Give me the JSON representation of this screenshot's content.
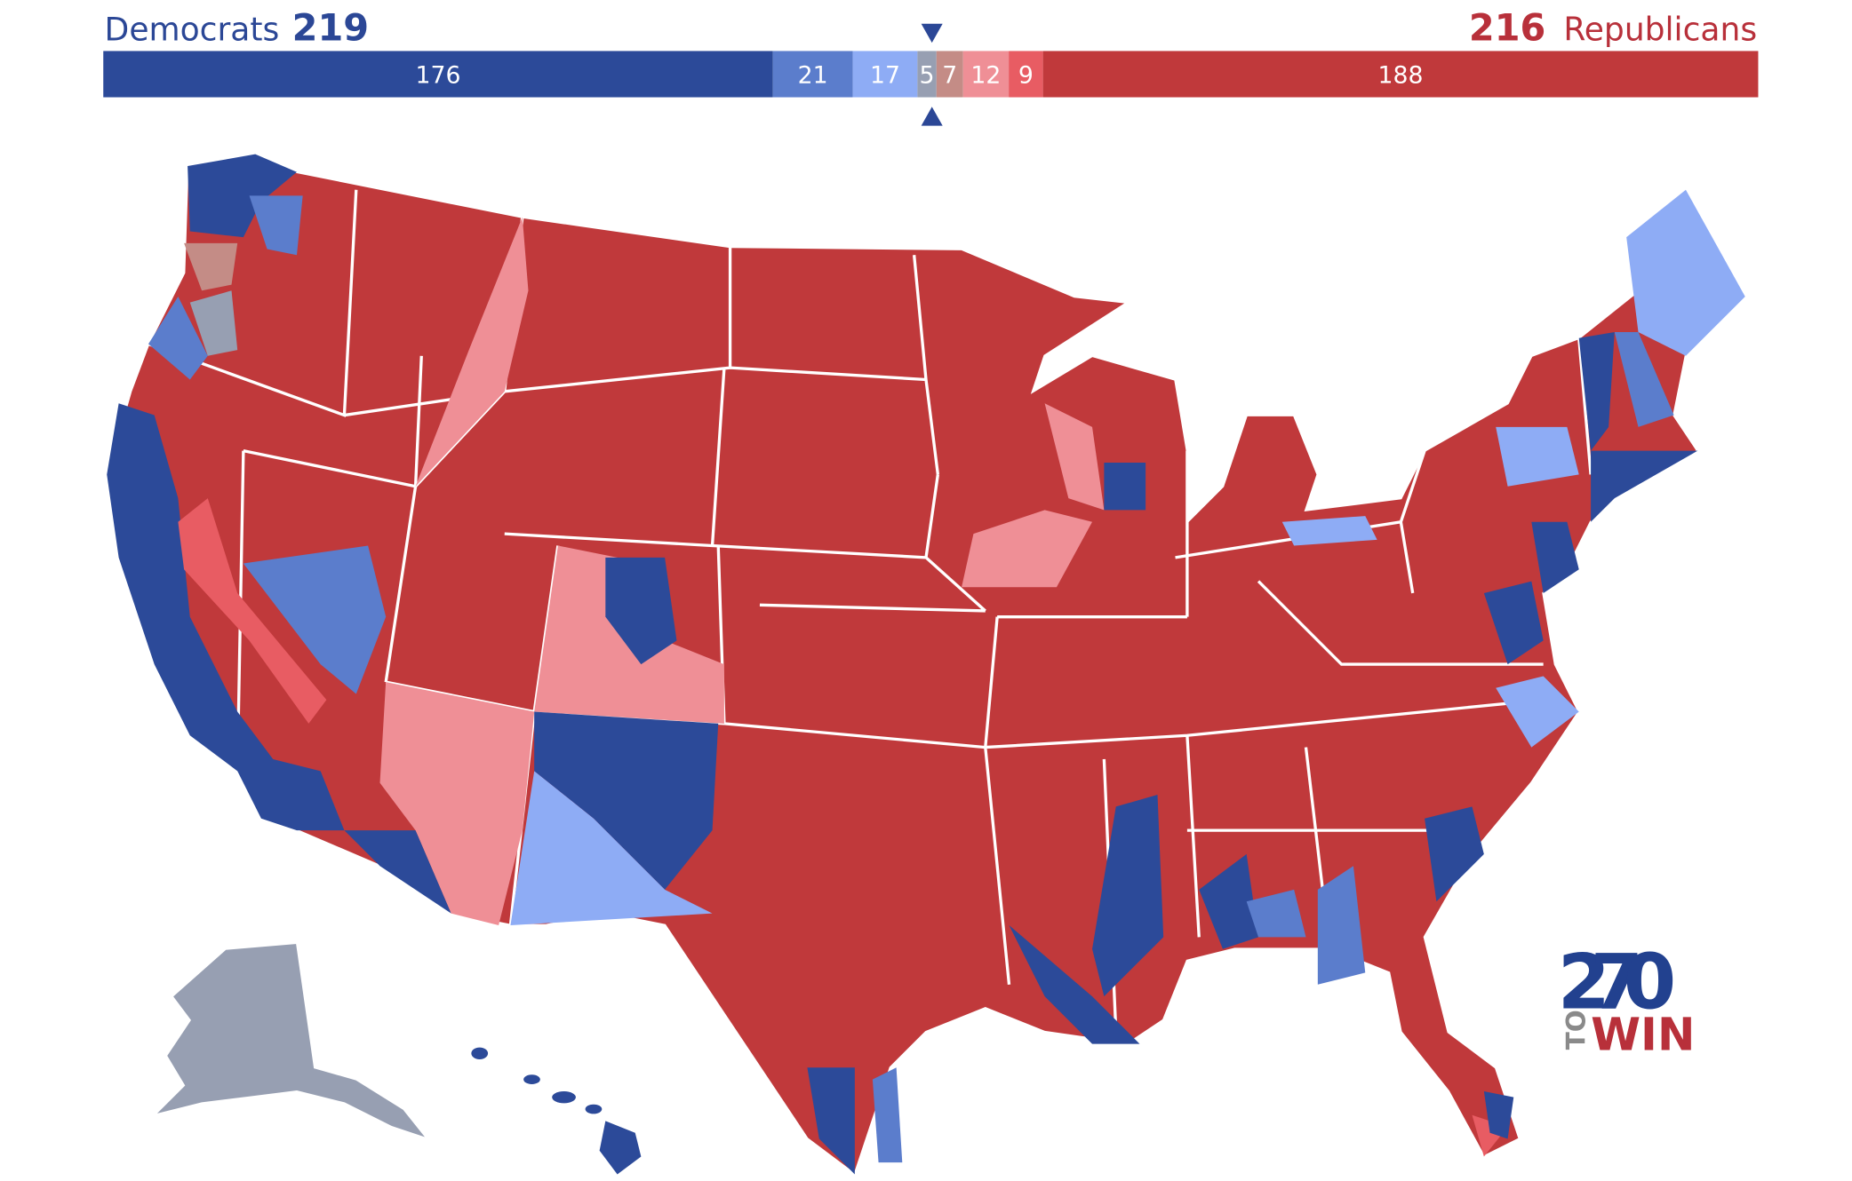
{
  "header": {
    "left": {
      "party": "Democrats",
      "total": 219,
      "color": "#2b4796"
    },
    "right": {
      "total": 216,
      "party": "Republicans",
      "color": "#b8303a"
    }
  },
  "bar": {
    "segments": [
      {
        "value": 176,
        "color": "#2c4a99"
      },
      {
        "value": 21,
        "color": "#5b7dcc"
      },
      {
        "value": 17,
        "color": "#8eacf5"
      },
      {
        "value": 5,
        "color": "#979fb2"
      },
      {
        "value": 7,
        "color": "#c48c86"
      },
      {
        "value": 12,
        "color": "#ef8f96"
      },
      {
        "value": 9,
        "color": "#e85c63"
      },
      {
        "value": 188,
        "color": "#c0393b"
      }
    ]
  },
  "logo": {
    "number": "270",
    "to": "TO",
    "win": "WIN"
  }
}
